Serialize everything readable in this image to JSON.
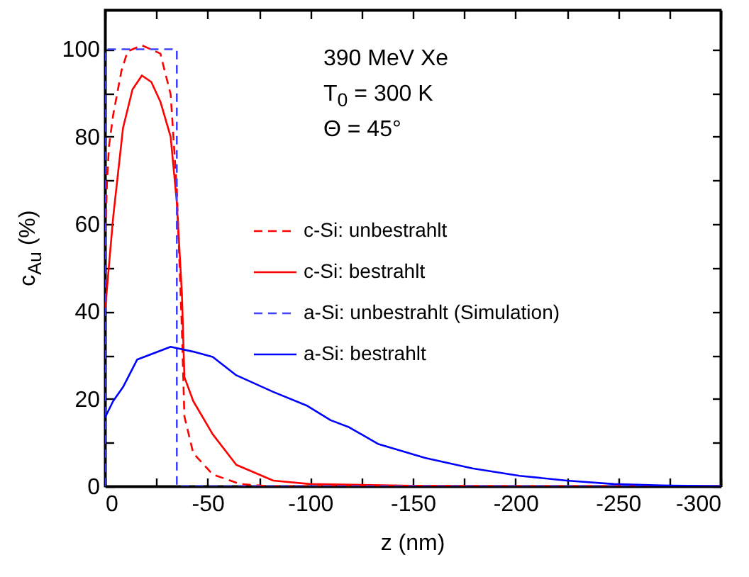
{
  "chart_data": {
    "type": "line",
    "xlabel": "z (nm)",
    "ylabel": "c$_{Au}$ (%)",
    "annotations": [
      "390 MeV Xe",
      "T$_{0}$ = 300 K",
      "Θ = 45°"
    ],
    "xlim": [
      0,
      -300
    ],
    "xticks": [
      0,
      {
        "value": -25,
        "label": null
      },
      -50,
      {
        "value": -75,
        "label": null
      },
      -100,
      {
        "value": -125,
        "label": null
      },
      -150,
      {
        "value": -175,
        "label": null
      },
      -200,
      {
        "value": -225,
        "label": null
      },
      -250,
      {
        "value": -275,
        "label": null
      },
      -300
    ],
    "ylim": [
      0,
      109
    ],
    "yticks": [
      0,
      {
        "value": 10,
        "label": null
      },
      20,
      {
        "value": 30,
        "label": null
      },
      40,
      {
        "value": 50,
        "label": null
      },
      60,
      {
        "value": 70,
        "label": null
      },
      80,
      {
        "value": 90,
        "label": null
      },
      100
    ],
    "grid": false,
    "legend": "right",
    "series": [
      {
        "name": "c-Si: unbestrahlt",
        "color": "#ff0000",
        "line_style": "dashed",
        "x": [
          0,
          -1,
          -2,
          -4,
          -8,
          -11,
          -18,
          -27,
          -32,
          -35,
          -37.5,
          -38.7,
          -43,
          -52.5,
          -66,
          -80,
          -100,
          -150,
          -200,
          -250,
          -300
        ],
        "values": [
          55,
          70,
          78,
          85,
          95,
          99.5,
          100.9,
          99,
          89.7,
          68,
          35.7,
          16,
          7.6,
          2.7,
          0.5,
          0,
          0,
          0,
          0,
          0,
          0
        ]
      },
      {
        "name": "c-Si: bestrahlt",
        "color": "#ff0000",
        "line_style": "solid",
        "x": [
          0,
          -4,
          -8.8,
          -13.4,
          -18,
          -22.6,
          -27,
          -32,
          -35,
          -37.5,
          -38.7,
          -43,
          -52.5,
          -64,
          -82,
          -100,
          -150,
          -200,
          -250,
          -300
        ],
        "values": [
          40,
          61.6,
          82,
          90.8,
          94,
          92.5,
          88,
          80,
          65,
          44,
          25,
          19.5,
          11.9,
          4.9,
          1.3,
          0.5,
          0.1,
          0,
          0,
          0
        ]
      },
      {
        "name": "a-Si: unbestrahlt (Simulation)",
        "color": "#4040ff",
        "line_style": "dashed",
        "x": [
          0,
          0,
          -35,
          -35,
          -300
        ],
        "values": [
          0,
          100,
          100,
          0,
          0
        ]
      },
      {
        "name": "a-Si: bestrahlt",
        "color": "#0000ff",
        "line_style": "solid",
        "x": [
          0,
          -4,
          -8.8,
          -15.7,
          -32,
          -43,
          -52.5,
          -64,
          -82,
          -98.6,
          -110,
          -119,
          -133,
          -156,
          -179,
          -202,
          -225,
          -248,
          -271,
          -300
        ],
        "values": [
          15.7,
          19.5,
          22.7,
          29,
          31.9,
          30.8,
          29.6,
          25.4,
          21.6,
          18.4,
          15.1,
          13.5,
          9.7,
          6.5,
          4.1,
          2.4,
          1.3,
          0.5,
          0.2,
          0
        ]
      }
    ]
  }
}
